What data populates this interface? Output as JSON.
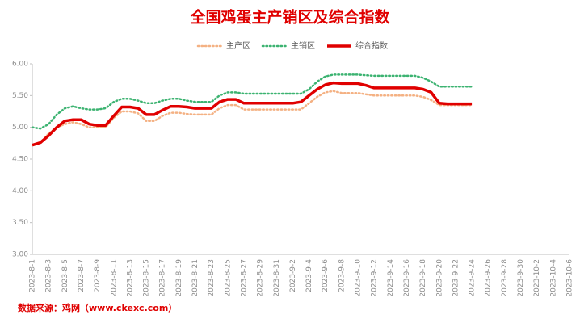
{
  "chart_data": {
    "type": "line",
    "title": "全国鸡蛋主产销区及综合指数",
    "source": "数据来源：鸡网（www.ckexc.com）",
    "categories": [
      "2023-8-1",
      null,
      "2023-8-3",
      null,
      "2023-8-5",
      null,
      "2023-8-7",
      null,
      "2023-8-9",
      null,
      "2023-8-11",
      null,
      "2023-8-13",
      null,
      "2023-8-15",
      null,
      "2023-8-17",
      null,
      "2023-8-19",
      null,
      "2023-8-21",
      null,
      "2023-8-23",
      null,
      "2023-8-25",
      null,
      "2023-8-27",
      null,
      "2023-8-29",
      null,
      "2023-8-31",
      null,
      "2023-9-2",
      null,
      "2023-9-4",
      null,
      "2023-9-6",
      null,
      "2023-9-8",
      null,
      "2023-9-10",
      null,
      "2023-9-12",
      null,
      "2023-9-14",
      null,
      "2023-9-16",
      null,
      "2023-9-18",
      null,
      "2023-9-20",
      null,
      "2023-9-22",
      null,
      "2023-9-24",
      null,
      "2023-9-26",
      null,
      "2023-9-28",
      null,
      "2023-9-30",
      null,
      "2023-10-2",
      null,
      "2023-10-4",
      null,
      "2023-10-6"
    ],
    "series": [
      {
        "name": "主产区",
        "color": "#f4b183",
        "dash": true,
        "values": [
          4.72,
          4.76,
          4.9,
          5.0,
          5.05,
          5.08,
          5.05,
          5.0,
          5.0,
          5.0,
          5.15,
          5.25,
          5.25,
          5.22,
          5.1,
          5.1,
          5.18,
          5.23,
          5.23,
          5.21,
          5.2,
          5.2,
          5.2,
          5.3,
          5.35,
          5.35,
          5.28,
          5.28,
          5.28,
          5.28,
          5.28,
          5.28,
          5.28,
          5.28,
          5.38,
          5.48,
          5.55,
          5.57,
          5.54,
          5.54,
          5.54,
          5.52,
          5.5,
          5.5,
          5.5,
          5.5,
          5.5,
          5.5,
          5.48,
          5.43,
          5.35,
          5.35,
          5.35,
          5.35,
          5.35,
          null,
          null,
          null,
          null,
          null,
          null,
          null,
          null,
          null,
          null,
          null,
          null
        ]
      },
      {
        "name": "主销区",
        "color": "#3cb371",
        "dash": true,
        "values": [
          5.0,
          4.98,
          5.05,
          5.2,
          5.3,
          5.33,
          5.3,
          5.28,
          5.28,
          5.3,
          5.4,
          5.45,
          5.45,
          5.42,
          5.38,
          5.38,
          5.42,
          5.45,
          5.45,
          5.42,
          5.4,
          5.4,
          5.4,
          5.5,
          5.55,
          5.55,
          5.53,
          5.53,
          5.53,
          5.53,
          5.53,
          5.53,
          5.53,
          5.53,
          5.6,
          5.72,
          5.8,
          5.83,
          5.83,
          5.83,
          5.83,
          5.82,
          5.81,
          5.81,
          5.81,
          5.81,
          5.81,
          5.81,
          5.78,
          5.72,
          5.64,
          5.64,
          5.64,
          5.64,
          5.64,
          null,
          null,
          null,
          null,
          null,
          null,
          null,
          null,
          null,
          null,
          null,
          null
        ]
      },
      {
        "name": "综合指数",
        "color": "#e00000",
        "dash": false,
        "values": [
          4.72,
          4.76,
          4.87,
          5.0,
          5.1,
          5.12,
          5.12,
          5.05,
          5.03,
          5.03,
          5.18,
          5.32,
          5.32,
          5.3,
          5.2,
          5.2,
          5.27,
          5.33,
          5.33,
          5.32,
          5.3,
          5.3,
          5.3,
          5.4,
          5.44,
          5.44,
          5.38,
          5.38,
          5.38,
          5.38,
          5.38,
          5.38,
          5.38,
          5.4,
          5.5,
          5.6,
          5.67,
          5.7,
          5.69,
          5.69,
          5.69,
          5.66,
          5.62,
          5.62,
          5.62,
          5.62,
          5.62,
          5.62,
          5.6,
          5.55,
          5.38,
          5.37,
          5.37,
          5.37,
          5.37,
          null,
          null,
          null,
          null,
          null,
          null,
          null,
          null,
          null,
          null,
          null,
          null
        ]
      }
    ],
    "ylim": [
      3,
      6
    ],
    "yticks": [
      {
        "value": 3,
        "label": "3.00"
      },
      {
        "value": 3.5,
        "label": "3.50"
      },
      {
        "value": 4,
        "label": "4.00"
      },
      {
        "value": 4.5,
        "label": "4.50"
      },
      {
        "value": 5,
        "label": "5.00"
      },
      {
        "value": 5.5,
        "label": "5.50"
      },
      {
        "value": 6,
        "label": "6.00"
      }
    ],
    "grid": false,
    "legend": "top"
  }
}
